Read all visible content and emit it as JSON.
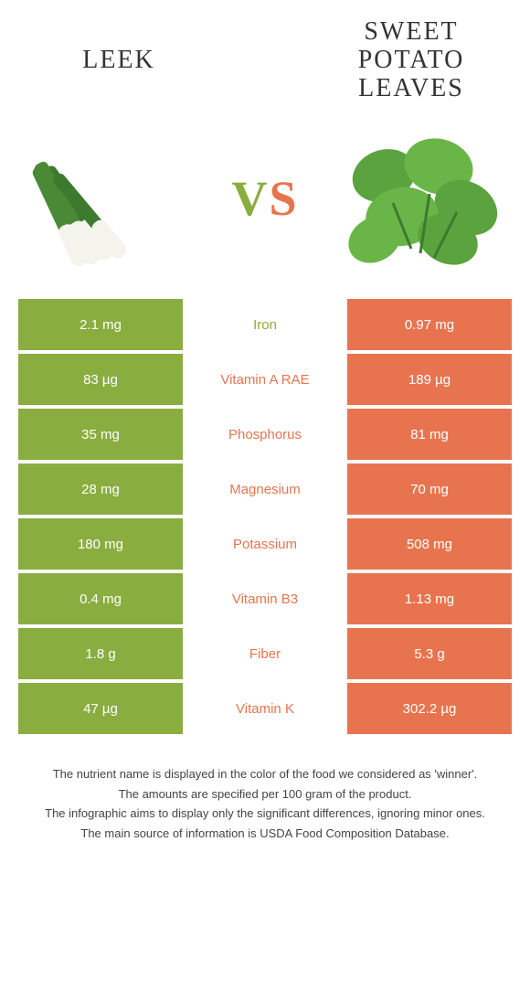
{
  "colors": {
    "left": "#8aad3f",
    "right": "#e8744f",
    "bg": "#ffffff",
    "text": "#333333",
    "footer": "#444444"
  },
  "left_food": {
    "title": "Leek"
  },
  "right_food": {
    "title": "Sweet Potato Leaves"
  },
  "vs": {
    "v": "V",
    "s": "S"
  },
  "rows": [
    {
      "left": "2.1 mg",
      "label": "Iron",
      "right": "0.97 mg",
      "winner": "left"
    },
    {
      "left": "83 µg",
      "label": "Vitamin A RAE",
      "right": "189 µg",
      "winner": "right"
    },
    {
      "left": "35 mg",
      "label": "Phosphorus",
      "right": "81 mg",
      "winner": "right"
    },
    {
      "left": "28 mg",
      "label": "Magnesium",
      "right": "70 mg",
      "winner": "right"
    },
    {
      "left": "180 mg",
      "label": "Potassium",
      "right": "508 mg",
      "winner": "right"
    },
    {
      "left": "0.4 mg",
      "label": "Vitamin B3",
      "right": "1.13 mg",
      "winner": "right"
    },
    {
      "left": "1.8 g",
      "label": "Fiber",
      "right": "5.3 g",
      "winner": "right"
    },
    {
      "left": "47 µg",
      "label": "Vitamin K",
      "right": "302.2 µg",
      "winner": "right"
    }
  ],
  "footer": {
    "line1": "The nutrient name is displayed in the color of the food we considered as 'winner'.",
    "line2": "The amounts are specified per 100 gram of the product.",
    "line3": "The infographic aims to display only the significant differences, ignoring minor ones.",
    "line4": "The main source of information is USDA Food Composition Database."
  }
}
